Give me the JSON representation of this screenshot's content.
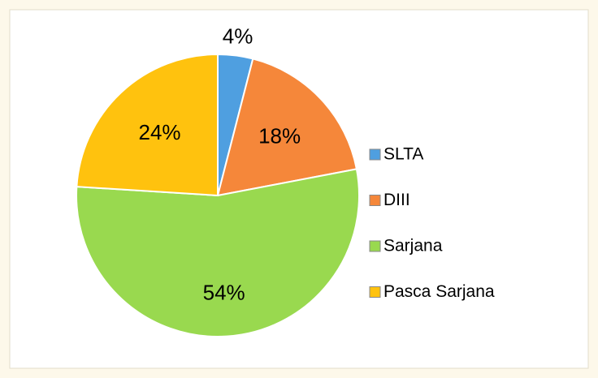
{
  "chart_data": {
    "type": "pie",
    "categories": [
      "SLTA",
      "DIII",
      "Sarjana",
      "Pasca Sarjana"
    ],
    "values": [
      4,
      18,
      54,
      24
    ],
    "value_labels": [
      "4%",
      "18%",
      "54%",
      "24%"
    ],
    "colors": [
      "#4f9fe0",
      "#f5873a",
      "#99d94f",
      "#ffc20e"
    ],
    "legend": "right"
  }
}
